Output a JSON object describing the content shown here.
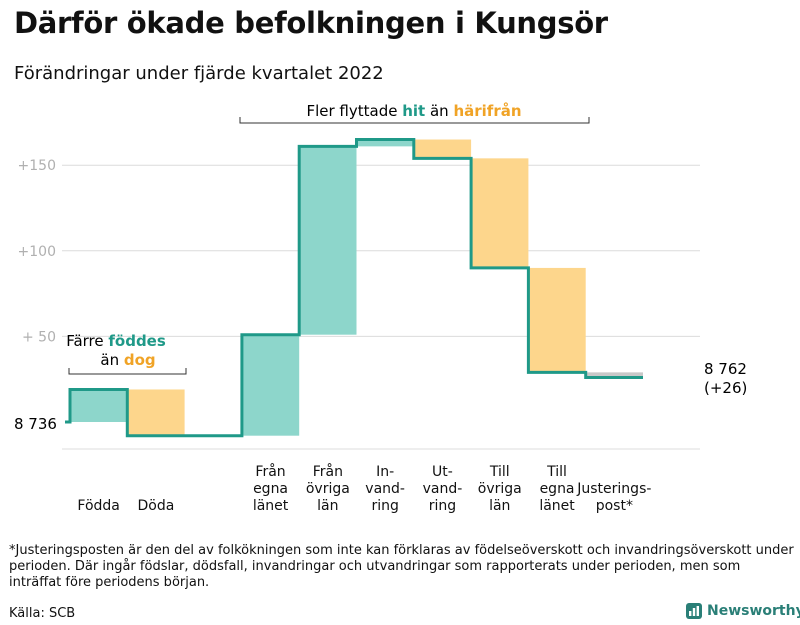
{
  "title": "Därför ökade befolkningen i Kungsör",
  "subtitle": "Förändringar under fjärde kvartalet 2022",
  "footnote": "*Justeringsposten är den del av folkökningen som inte kan förklaras av födelseöverskott och invandringsöverskott under perioden. Där ingår födslar, dödsfall, invandringar och utvandringar som rapporterats under perioden, men som inträffat före periodens början.",
  "source": "Källa: SCB",
  "brand": "Newsworthy",
  "colors": {
    "positive": "#8dd6cb",
    "negative": "#fdd68c",
    "line": "#1f9988",
    "adjust": "#c8c8c8",
    "hit": "#1f9988",
    "harifran": "#f0a326"
  },
  "annotations": {
    "birth": {
      "pre": "Färre ",
      "word1": "föddes",
      "line2_pre": "än ",
      "word2": "dog"
    },
    "migration": {
      "pre": "Fler flyttade ",
      "word1": "hit",
      "mid": " än ",
      "word2": "härifrån"
    }
  },
  "chart_data": {
    "type": "waterfall",
    "start_label": "8 736",
    "end_label": "8 762",
    "end_change": "(+26)",
    "yticks": [
      {
        "value": 150,
        "label": "+150"
      },
      {
        "value": 100,
        "label": "+100"
      },
      {
        "value": 50,
        "label": "+ 50"
      }
    ],
    "ylim": [
      -10,
      170
    ],
    "steps": [
      {
        "label": [
          "Födda"
        ],
        "start": 0,
        "end": 19,
        "kind": "positive"
      },
      {
        "label": [
          "Döda"
        ],
        "start": 19,
        "end": -8,
        "kind": "negative"
      },
      {
        "label": [],
        "start": -8,
        "end": -8,
        "kind": "none"
      },
      {
        "label": [
          "Från",
          "egna",
          "länet"
        ],
        "start": -8,
        "end": 51,
        "kind": "positive"
      },
      {
        "label": [
          "Från",
          "övriga",
          "län"
        ],
        "start": 51,
        "end": 161,
        "kind": "positive"
      },
      {
        "label": [
          "In-",
          "vand-",
          "ring"
        ],
        "start": 161,
        "end": 165,
        "kind": "positive"
      },
      {
        "label": [
          "Ut-",
          "vand-",
          "ring"
        ],
        "start": 165,
        "end": 154,
        "kind": "negative"
      },
      {
        "label": [
          "Till",
          "övriga",
          "län"
        ],
        "start": 154,
        "end": 90,
        "kind": "negative"
      },
      {
        "label": [
          "Till",
          "egna",
          "länet"
        ],
        "start": 90,
        "end": 29,
        "kind": "negative"
      },
      {
        "label": [
          "Justerings-",
          "post*"
        ],
        "start": 29,
        "end": 26,
        "kind": "adjust"
      }
    ]
  }
}
